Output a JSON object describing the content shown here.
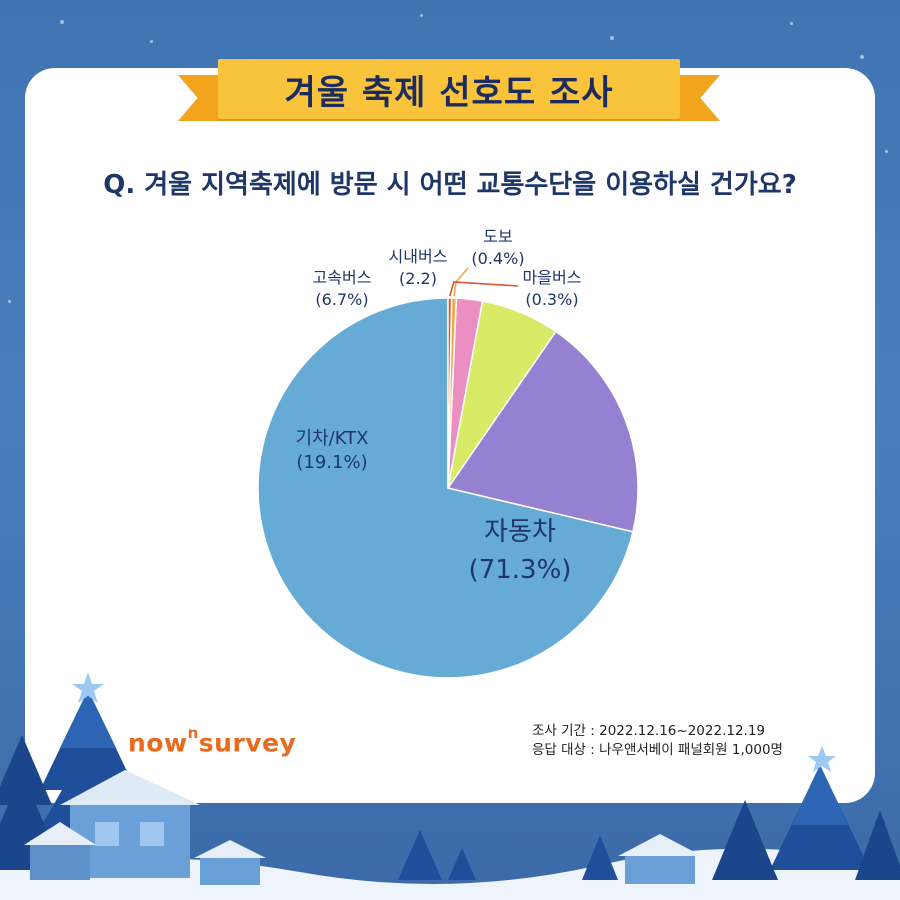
{
  "banner": {
    "title": "겨울 축제 선호도 조사"
  },
  "question": "Q. 겨울 지역축제에 방문 시 어떤 교통수단을 이용하실 건가요?",
  "chart_data": {
    "type": "pie",
    "slices": [
      {
        "name": "자동차",
        "value": 71.3,
        "label_line1": "자동차",
        "label_line2": "(71.3%)",
        "color": "#66aad6"
      },
      {
        "name": "기차/KTX",
        "value": 19.1,
        "label_line1": "기차/KTX",
        "label_line2": "(19.1%)",
        "color": "#9580d1"
      },
      {
        "name": "고속버스",
        "value": 6.7,
        "label_line1": "고속버스",
        "label_line2": "(6.7%)",
        "color": "#d8ea66"
      },
      {
        "name": "시내버스",
        "value": 2.2,
        "label_line1": "시내버스",
        "label_line2": "(2.2)",
        "color": "#eb8fc2"
      },
      {
        "name": "도보",
        "value": 0.4,
        "label_line1": "도보",
        "label_line2": "(0.4%)",
        "color": "#f2a94a"
      },
      {
        "name": "마을버스",
        "value": 0.3,
        "label_line1": "마을버스",
        "label_line2": "(0.3%)",
        "color": "#d9572f"
      }
    ]
  },
  "footer": {
    "logo_main1": "now",
    "logo_sup": "n",
    "logo_main2": "survey",
    "period": "조사 기간 : 2022.12.16~2022.12.19",
    "target": "응답 대상 : 나우앤서베이 패널회원 1,000명"
  }
}
